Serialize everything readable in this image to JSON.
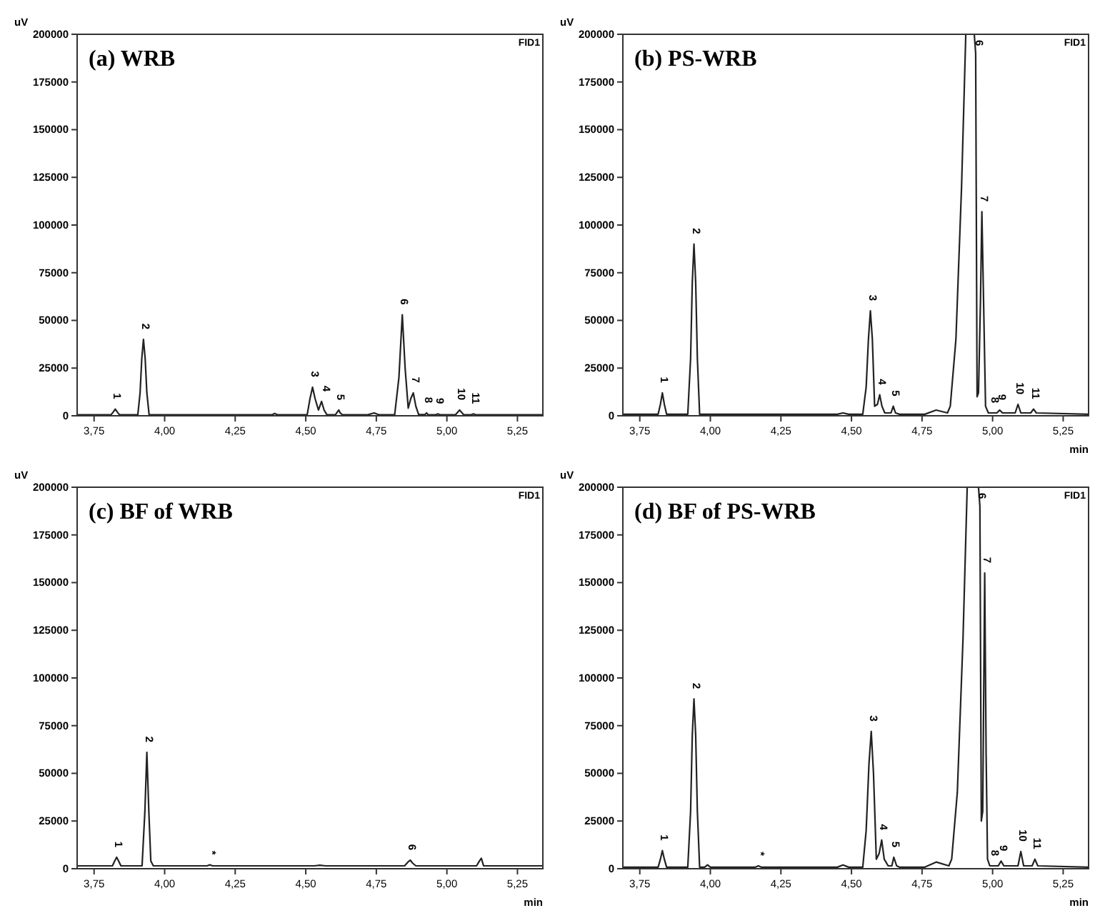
{
  "chart_data": [
    {
      "type": "line",
      "title": "(a) WRB",
      "ylabel": "uV",
      "annotations": [
        "FID1",
        {
          "text": "1",
          "x": 3.825,
          "y": 3500
        },
        {
          "text": "2",
          "x": 3.925,
          "y": 40000
        },
        {
          "text": "3",
          "x": 4.524,
          "y": 15000
        },
        {
          "text": "4",
          "x": 4.565,
          "y": 7500
        },
        {
          "text": "5",
          "x": 4.617,
          "y": 3000
        },
        {
          "text": "6",
          "x": 4.842,
          "y": 53000
        },
        {
          "text": "7",
          "x": 4.881,
          "y": 12000
        },
        {
          "text": "8",
          "x": 4.928,
          "y": 1500
        },
        {
          "text": "9",
          "x": 4.968,
          "y": 1000
        },
        {
          "text": "10",
          "x": 5.045,
          "y": 3000
        },
        {
          "text": "11",
          "x": 5.094,
          "y": 1000
        }
      ],
      "series": [
        {
          "color": "#222222",
          "x": [
            3.69,
            3.81,
            3.818,
            3.825,
            3.832,
            3.84,
            3.905,
            3.913,
            3.919,
            3.925,
            3.931,
            3.937,
            3.945,
            4.38,
            4.39,
            4.4,
            4.505,
            4.515,
            4.524,
            4.533,
            4.545,
            4.556,
            4.565,
            4.575,
            4.605,
            4.612,
            4.617,
            4.622,
            4.63,
            4.72,
            4.742,
            4.76,
            4.815,
            4.83,
            4.842,
            4.852,
            4.863,
            4.872,
            4.881,
            4.89,
            4.9,
            4.922,
            4.928,
            4.934,
            4.96,
            4.968,
            4.976,
            5.03,
            5.045,
            5.06,
            5.085,
            5.094,
            5.103,
            5.3,
            5.34
          ],
          "values": [
            500,
            500,
            2000,
            3500,
            2000,
            500,
            500,
            12000,
            30000,
            40000,
            30000,
            12000,
            500,
            500,
            1200,
            500,
            500,
            9000,
            15000,
            9000,
            3000,
            7500,
            3000,
            500,
            500,
            2000,
            3000,
            1500,
            500,
            500,
            1500,
            500,
            500,
            20000,
            53000,
            25000,
            4000,
            9000,
            12000,
            5000,
            600,
            600,
            1500,
            500,
            500,
            1000,
            500,
            500,
            3000,
            500,
            500,
            1000,
            500,
            500,
            500
          ]
        }
      ],
      "xlim": [
        3.69,
        5.34
      ],
      "ylim": [
        0,
        200000
      ],
      "xticks": [
        {
          "value": 3.75,
          "label": "3,75"
        },
        {
          "value": 4,
          "label": "4,00"
        },
        {
          "value": 4.25,
          "label": "4,25"
        },
        {
          "value": 4.5,
          "label": "4,50"
        },
        {
          "value": 4.75,
          "label": "4,75"
        },
        {
          "value": 5,
          "label": "5,00"
        },
        {
          "value": 5.25,
          "label": "5,25"
        }
      ],
      "yticks": [
        0,
        25000,
        50000,
        75000,
        100000,
        125000,
        150000,
        175000,
        200000
      ]
    },
    {
      "type": "line",
      "title": "(b) PS-WRB",
      "xlabel": "min",
      "ylabel": "uV",
      "annotations": [
        "FID1",
        {
          "text": "1",
          "x": 3.83,
          "y": 12000
        },
        {
          "text": "2",
          "x": 3.942,
          "y": 90000
        },
        {
          "text": "3",
          "x": 4.567,
          "y": 55000
        },
        {
          "text": "4",
          "x": 4.6,
          "y": 11000
        },
        {
          "text": "5",
          "x": 4.648,
          "y": 5000
        },
        {
          "text": "6",
          "x": 4.925,
          "y": 200000
        },
        {
          "text": "7",
          "x": 4.962,
          "y": 107000
        },
        {
          "text": "8",
          "x": 5.0,
          "y": 1500
        },
        {
          "text": "9",
          "x": 5.025,
          "y": 3000
        },
        {
          "text": "10",
          "x": 5.09,
          "y": 6000
        },
        {
          "text": "11",
          "x": 5.145,
          "y": 3500
        }
      ],
      "series": [
        {
          "color": "#222222",
          "x": [
            3.69,
            3.815,
            3.823,
            3.83,
            3.837,
            3.845,
            3.92,
            3.93,
            3.936,
            3.942,
            3.948,
            3.954,
            3.962,
            4.45,
            4.47,
            4.49,
            4.54,
            4.552,
            4.56,
            4.567,
            4.574,
            4.582,
            4.592,
            4.6,
            4.608,
            4.618,
            4.64,
            4.648,
            4.656,
            4.67,
            4.76,
            4.8,
            4.84,
            4.85,
            4.87,
            4.89,
            4.905,
            4.915,
            4.935,
            4.94,
            4.945,
            4.95,
            4.957,
            4.962,
            4.968,
            4.975,
            4.985,
            4.99,
            5.0,
            5.015,
            5.025,
            5.035,
            5.08,
            5.09,
            5.1,
            5.135,
            5.145,
            5.155,
            5.34
          ],
          "values": [
            800,
            800,
            6000,
            12000,
            6000,
            800,
            800,
            30000,
            70000,
            90000,
            70000,
            30000,
            800,
            800,
            1500,
            800,
            800,
            15000,
            40000,
            55000,
            40000,
            5000,
            6000,
            11000,
            5000,
            1500,
            1500,
            5000,
            1500,
            800,
            800,
            3000,
            1500,
            5000,
            40000,
            120000,
            200000,
            200000,
            200000,
            190000,
            10000,
            12000,
            60000,
            107000,
            60000,
            5000,
            1500,
            1500,
            1500,
            1500,
            3000,
            1500,
            1500,
            6000,
            1500,
            1500,
            3500,
            1500,
            800
          ]
        }
      ],
      "xlim": [
        3.69,
        5.34
      ],
      "ylim": [
        0,
        200000
      ],
      "xticks": [
        {
          "value": 3.75,
          "label": "3,75"
        },
        {
          "value": 4,
          "label": "4,00"
        },
        {
          "value": 4.25,
          "label": "4,25"
        },
        {
          "value": 4.5,
          "label": "4,50"
        },
        {
          "value": 4.75,
          "label": "4,75"
        },
        {
          "value": 5,
          "label": "5,00"
        },
        {
          "value": 5.25,
          "label": "5,25"
        }
      ],
      "yticks": [
        0,
        25000,
        50000,
        75000,
        100000,
        125000,
        150000,
        175000,
        200000
      ]
    },
    {
      "type": "line",
      "title": "(c) BF of WRB",
      "xlabel": "min",
      "ylabel": "uV",
      "annotations": [
        "FID1",
        {
          "text": "1",
          "x": 3.83,
          "y": 6000
        },
        {
          "text": "2",
          "x": 3.937,
          "y": 61000
        },
        {
          "text": "*",
          "x": 4.16,
          "y": 2000
        },
        {
          "text": "6",
          "x": 4.87,
          "y": 4500
        }
      ],
      "series": [
        {
          "color": "#222222",
          "x": [
            3.69,
            3.815,
            3.823,
            3.83,
            3.837,
            3.845,
            3.92,
            3.93,
            3.937,
            3.944,
            3.951,
            3.96,
            4.15,
            4.16,
            4.17,
            4.53,
            4.55,
            4.57,
            4.85,
            4.862,
            4.87,
            4.878,
            4.89,
            5.105,
            5.115,
            5.122,
            5.13,
            5.34
          ],
          "values": [
            1500,
            1500,
            4000,
            6000,
            4000,
            1500,
            1500,
            30000,
            61000,
            30000,
            4000,
            1500,
            1500,
            2000,
            1500,
            1500,
            1800,
            1500,
            1500,
            3500,
            4500,
            3000,
            1500,
            1500,
            4000,
            5500,
            1500,
            1500
          ]
        }
      ],
      "xlim": [
        3.69,
        5.34
      ],
      "ylim": [
        0,
        200000
      ],
      "xticks": [
        {
          "value": 3.75,
          "label": "3,75"
        },
        {
          "value": 4,
          "label": "4,00"
        },
        {
          "value": 4.25,
          "label": "4,25"
        },
        {
          "value": 4.5,
          "label": "4,50"
        },
        {
          "value": 4.75,
          "label": "4,75"
        },
        {
          "value": 5,
          "label": "5,00"
        },
        {
          "value": 5.25,
          "label": "5,25"
        }
      ],
      "yticks": [
        0,
        25000,
        50000,
        75000,
        100000,
        125000,
        150000,
        175000,
        200000
      ]
    },
    {
      "type": "line",
      "title": "(d) BF of PS-WRB",
      "xlabel": "min",
      "ylabel": "uV",
      "annotations": [
        "FID1",
        {
          "text": "1",
          "x": 3.83,
          "y": 9500
        },
        {
          "text": "2",
          "x": 3.942,
          "y": 89000
        },
        {
          "text": "*",
          "x": 4.17,
          "y": 1500
        },
        {
          "text": "3",
          "x": 4.57,
          "y": 72000
        },
        {
          "text": "4",
          "x": 4.607,
          "y": 15000
        },
        {
          "text": "5",
          "x": 4.65,
          "y": 6000
        },
        {
          "text": "6",
          "x": 4.935,
          "y": 200000
        },
        {
          "text": "7",
          "x": 4.972,
          "y": 155000
        },
        {
          "text": "8",
          "x": 5.0,
          "y": 1500
        },
        {
          "text": "9",
          "x": 5.03,
          "y": 4000
        },
        {
          "text": "10",
          "x": 5.1,
          "y": 9000
        },
        {
          "text": "11",
          "x": 5.15,
          "y": 5000
        }
      ],
      "series": [
        {
          "color": "#222222",
          "x": [
            3.69,
            3.815,
            3.823,
            3.83,
            3.837,
            3.845,
            3.92,
            3.93,
            3.936,
            3.942,
            3.948,
            3.954,
            3.962,
            3.98,
            3.99,
            4.0,
            4.16,
            4.17,
            4.18,
            4.45,
            4.47,
            4.49,
            4.54,
            4.552,
            4.562,
            4.57,
            4.578,
            4.588,
            4.598,
            4.607,
            4.616,
            4.63,
            4.643,
            4.65,
            4.66,
            4.67,
            4.76,
            4.8,
            4.845,
            4.855,
            4.875,
            4.895,
            4.91,
            4.92,
            4.95,
            4.955,
            4.96,
            4.965,
            4.972,
            4.977,
            4.982,
            4.99,
            5.0,
            5.01,
            5.02,
            5.03,
            5.04,
            5.09,
            5.1,
            5.11,
            5.14,
            5.15,
            5.16,
            5.34
          ],
          "values": [
            800,
            800,
            5000,
            9500,
            5000,
            800,
            800,
            30000,
            70000,
            89000,
            70000,
            30000,
            800,
            800,
            2000,
            800,
            800,
            1500,
            800,
            800,
            2000,
            800,
            800,
            20000,
            55000,
            72000,
            50000,
            5000,
            8000,
            15000,
            5000,
            1500,
            1500,
            6000,
            1500,
            800,
            800,
            3500,
            1500,
            5000,
            40000,
            120000,
            200000,
            200000,
            200000,
            190000,
            25000,
            30000,
            155000,
            60000,
            5000,
            1500,
            1500,
            1500,
            1500,
            4000,
            1500,
            1500,
            9000,
            1500,
            1500,
            5000,
            1500,
            800
          ]
        }
      ],
      "xlim": [
        3.69,
        5.34
      ],
      "ylim": [
        0,
        200000
      ],
      "xticks": [
        {
          "value": 3.75,
          "label": "3,75"
        },
        {
          "value": 4,
          "label": "4,00"
        },
        {
          "value": 4.25,
          "label": "4,25"
        },
        {
          "value": 4.5,
          "label": "4,50"
        },
        {
          "value": 4.75,
          "label": "4,75"
        },
        {
          "value": 5,
          "label": "5,00"
        },
        {
          "value": 5.25,
          "label": "5,25"
        }
      ],
      "yticks": [
        0,
        25000,
        50000,
        75000,
        100000,
        125000,
        150000,
        175000,
        200000
      ]
    }
  ]
}
